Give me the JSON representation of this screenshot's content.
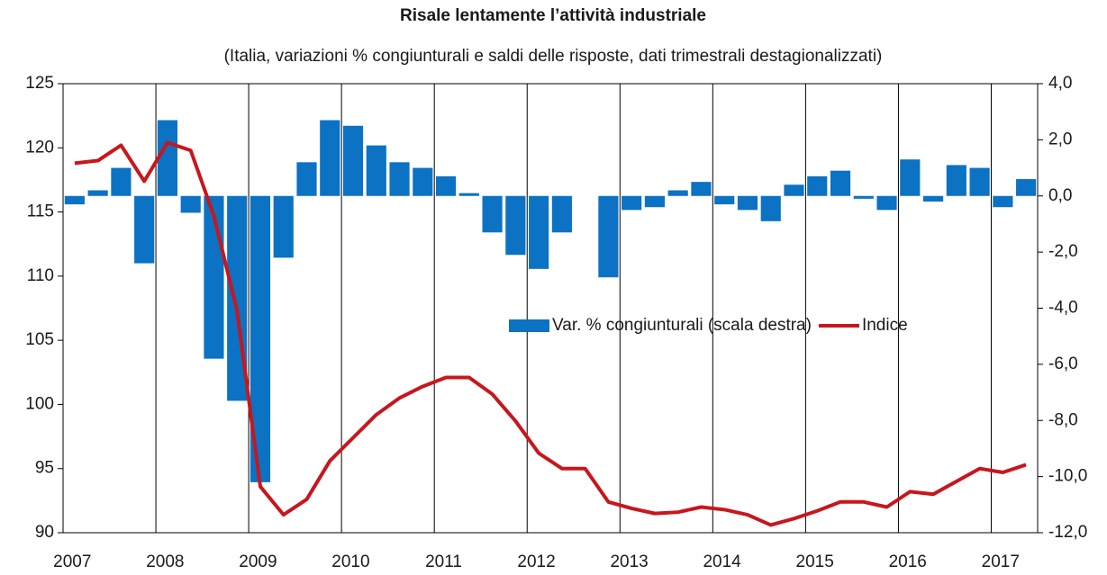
{
  "chart_data": {
    "type": "combo",
    "title": "Risale lentamente l’attività industriale",
    "subtitle": "(Italia, variazioni % congiunturali e saldi delle risposte, dati trimestrali destagionalizzati)",
    "categories": [
      "2007",
      null,
      null,
      null,
      "2008",
      null,
      null,
      null,
      "2009",
      null,
      null,
      null,
      "2010",
      null,
      null,
      null,
      "2011",
      null,
      null,
      null,
      "2012",
      null,
      null,
      null,
      "2013",
      null,
      null,
      null,
      "2014",
      null,
      null,
      null,
      "2015",
      null,
      null,
      null,
      "2016",
      null,
      null,
      null,
      "2017",
      null
    ],
    "series": [
      {
        "name": "Var. % congiunturali (scala destra)",
        "type": "bar",
        "axis": "y2",
        "color": "#0b72c4",
        "values": [
          -0.3,
          0.2,
          1.0,
          -2.4,
          2.7,
          -0.6,
          -5.8,
          -7.3,
          -10.2,
          -2.2,
          1.2,
          2.7,
          2.5,
          1.8,
          1.2,
          1.0,
          0.7,
          0.1,
          -1.3,
          -2.1,
          -2.6,
          -1.3,
          0.0,
          -2.9,
          -0.5,
          -0.4,
          0.2,
          0.5,
          -0.3,
          -0.5,
          -0.9,
          0.4,
          0.7,
          0.9,
          -0.1,
          -0.5,
          1.3,
          -0.2,
          1.1,
          1.0,
          -0.4,
          0.6
        ]
      },
      {
        "name": "Indice",
        "type": "line",
        "color": "#c8161d",
        "values": [
          118.8,
          119.0,
          120.2,
          117.4,
          120.4,
          119.8,
          114.7,
          107.3,
          93.6,
          91.4,
          92.6,
          95.6,
          97.4,
          99.2,
          100.5,
          101.4,
          102.1,
          102.1,
          100.8,
          98.7,
          96.2,
          95.0,
          95.0,
          92.4,
          91.9,
          91.5,
          91.6,
          92.0,
          91.8,
          91.4,
          90.6,
          91.1,
          91.7,
          92.4,
          92.4,
          92.0,
          93.2,
          93.0,
          94.0,
          95.0,
          94.7,
          95.3
        ]
      }
    ],
    "ylim": [
      90,
      125
    ],
    "yticks": [
      90,
      95,
      100,
      105,
      110,
      115,
      120,
      125
    ],
    "y2lim": [
      -12,
      4
    ],
    "y2ticks": [
      {
        "value": -12,
        "label": "-12,0"
      },
      {
        "value": -10,
        "label": "-10,0"
      },
      {
        "value": -8,
        "label": "-8,0"
      },
      {
        "value": -6,
        "label": "-6,0"
      },
      {
        "value": -4,
        "label": "-4,0"
      },
      {
        "value": -2,
        "label": "-2,0"
      },
      {
        "value": 0,
        "label": "0,0"
      },
      {
        "value": 2,
        "label": "2,0"
      },
      {
        "value": 4,
        "label": "4,0"
      }
    ]
  }
}
